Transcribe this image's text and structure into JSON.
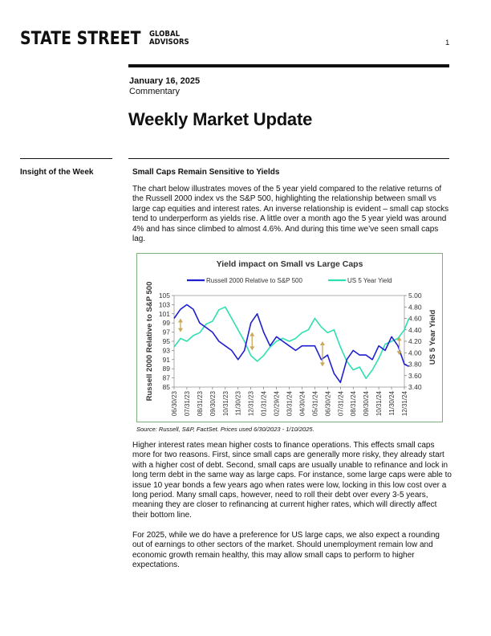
{
  "header": {
    "logo_main": "STATE STREET",
    "logo_sub_line1": "GLOBAL",
    "logo_sub_line2": "ADVISORS",
    "page_number": "1"
  },
  "meta": {
    "date": "January 16, 2025",
    "doc_type": "Commentary"
  },
  "title": "Weekly Market Update",
  "section": {
    "label": "Insight of the Week",
    "heading": "Small Caps Remain Sensitive to Yields"
  },
  "paragraphs": [
    "The chart below illustrates moves of the 5 year yield compared to the relative returns of the Russell 2000 index vs the S&P 500, highlighting the relationship between small vs large cap equities and interest rates. An inverse relationship is evident – small cap stocks tend to underperform as yields rise. A little over a month ago the 5 year yield was around 4% and has since climbed to almost 4.6%. And during this time we’ve seen small caps lag.",
    "Higher interest rates mean higher costs to finance operations. This effects small caps more for two reasons.  First, since small caps are generally more risky, they already start with a higher cost of debt. Second, small caps are usually unable to refinance and lock in long term debt in the same way as large caps. For instance, some large caps were able to issue 10 year bonds a few years ago when rates were low, locking in this low cost over a long period.  Many small caps, however, need to roll their debt over every 3-5 years, meaning they are closer to refinancing at current higher rates, which will directly affect their bottom line.",
    "For 2025, while we do have a preference for US large caps, we also expect a rounding out of earnings to other sectors of the market. Should unemployment remain low and economic growth remain healthy, this may allow small caps to perform to higher expectations."
  ],
  "chart_source": "Source: Russell, S&P, FactSet. Prices used 6/30/2023 - 1/10/2025.",
  "chart_data": {
    "type": "line",
    "title": "Yield impact on Small vs Large Caps",
    "x_tick_labels": [
      "06/30/23",
      "07/31/23",
      "08/31/23",
      "09/30/23",
      "10/31/23",
      "11/30/23",
      "12/31/23",
      "01/31/24",
      "02/29/24",
      "03/31/24",
      "04/30/24",
      "05/31/24",
      "06/30/24",
      "07/31/24",
      "08/31/24",
      "09/30/24",
      "10/31/24",
      "11/30/24",
      "12/31/24"
    ],
    "ylabel_left": "Russell 2000 Relative to S&P 500",
    "ylabel_right": "US 5 Year Yield",
    "ylim_left": [
      85,
      105
    ],
    "yticks_left": [
      85,
      87,
      89,
      91,
      93,
      95,
      97,
      99,
      101,
      103,
      105
    ],
    "ylim_right": [
      3.4,
      5.0
    ],
    "yticks_right": [
      "3.40",
      "3.60",
      "3.80",
      "4.00",
      "4.20",
      "4.40",
      "4.60",
      "4.80",
      "5.00"
    ],
    "legend_position": "top",
    "grid": false,
    "series": [
      {
        "name": "Russell 2000 Relative to S&P 500",
        "axis": "left",
        "color": "#1f1fd0",
        "x": [
          0,
          0.5,
          1,
          1.5,
          2,
          2.5,
          3,
          3.5,
          4,
          4.5,
          5,
          5.5,
          6,
          6.5,
          7,
          7.5,
          8,
          8.5,
          9,
          9.5,
          10,
          10.5,
          11,
          11.5,
          12,
          12.5,
          13,
          13.5,
          14,
          14.5,
          15,
          15.5,
          16,
          16.5,
          17,
          17.5,
          18,
          18.35
        ],
        "values": [
          100,
          102,
          103,
          102,
          99,
          98,
          97,
          95,
          94,
          93,
          91,
          93,
          99,
          101,
          97,
          94,
          96,
          95,
          94,
          93,
          94,
          94,
          94,
          91,
          92,
          88,
          86,
          91,
          93,
          92,
          92,
          91,
          94,
          93,
          96,
          94,
          90,
          89.5
        ]
      },
      {
        "name": "US 5 Year Yield",
        "axis": "right",
        "color": "#2ee0b0",
        "x": [
          0,
          0.5,
          1,
          1.5,
          2,
          2.5,
          3,
          3.5,
          4,
          4.5,
          5,
          5.5,
          6,
          6.5,
          7,
          7.5,
          8,
          8.5,
          9,
          9.5,
          10,
          10.5,
          11,
          11.5,
          12,
          12.5,
          13,
          13.5,
          14,
          14.5,
          15,
          15.5,
          16,
          16.5,
          17,
          17.5,
          18,
          18.35
        ],
        "values": [
          4.1,
          4.25,
          4.2,
          4.3,
          4.35,
          4.5,
          4.55,
          4.75,
          4.8,
          4.6,
          4.4,
          4.2,
          3.95,
          3.85,
          3.95,
          4.1,
          4.2,
          4.25,
          4.2,
          4.25,
          4.35,
          4.4,
          4.6,
          4.45,
          4.35,
          4.4,
          4.1,
          3.85,
          3.7,
          3.75,
          3.55,
          3.7,
          3.9,
          4.15,
          4.2,
          4.25,
          4.4,
          4.6
        ]
      }
    ],
    "annotations": [
      {
        "type": "double-arrow",
        "color": "#c9a85a",
        "x": 0.5,
        "from": 100,
        "to": 97
      },
      {
        "type": "double-arrow",
        "color": "#c9a85a",
        "x": 6.1,
        "from": 97,
        "to": 93
      },
      {
        "type": "double-arrow",
        "color": "#c9a85a",
        "x": 11.6,
        "from": 95,
        "to": 89.5
      },
      {
        "type": "double-arrow",
        "color": "#c9a85a",
        "x": 17.6,
        "from": 96,
        "to": 92
      }
    ]
  }
}
